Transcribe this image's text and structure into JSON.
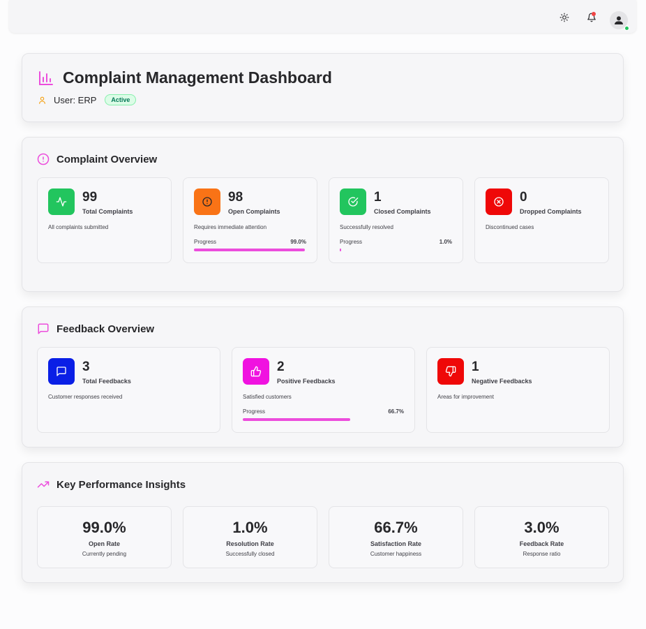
{
  "header": {
    "title": "Complaint Management Dashboard",
    "user_label": "User: ERP",
    "status_badge": "Active"
  },
  "topbar": {
    "icons": [
      "sun-icon",
      "bell-icon",
      "user-avatar-icon"
    ],
    "notification_dot": true,
    "online_status": true
  },
  "complaint_overview": {
    "title": "Complaint Overview",
    "cards": [
      {
        "value": "99",
        "label": "Total Complaints",
        "desc": "All complaints submitted",
        "icon": "activity-icon",
        "color": "#22c55e"
      },
      {
        "value": "98",
        "label": "Open Complaints",
        "desc": "Requires immediate attention",
        "icon": "alert-circle-icon",
        "color": "#f97316",
        "progress_label": "Progress",
        "progress_text": "99.0%",
        "progress": 0.99
      },
      {
        "value": "1",
        "label": "Closed Complaints",
        "desc": "Successfully resolved",
        "icon": "check-circle-icon",
        "color": "#22c55e",
        "progress_label": "Progress",
        "progress_text": "1.0%",
        "progress": 0.01
      },
      {
        "value": "0",
        "label": "Dropped Complaints",
        "desc": "Discontinued cases",
        "icon": "x-circle-icon",
        "color": "#ef0808"
      }
    ]
  },
  "feedback_overview": {
    "title": "Feedback Overview",
    "cards": [
      {
        "value": "3",
        "label": "Total Feedbacks",
        "desc": "Customer responses received",
        "icon": "message-square-icon",
        "color": "#0a1fe6"
      },
      {
        "value": "2",
        "label": "Positive Feedbacks",
        "desc": "Satisfied customers",
        "icon": "thumbs-up-icon",
        "color": "#f012e0",
        "progress_label": "Progress",
        "progress_text": "66.7%",
        "progress": 0.667
      },
      {
        "value": "1",
        "label": "Negative Feedbacks",
        "desc": "Areas for improvement",
        "icon": "thumbs-down-icon",
        "color": "#ef0808"
      }
    ]
  },
  "kpi": {
    "title": "Key Performance Insights",
    "cards": [
      {
        "value": "99.0%",
        "label": "Open Rate",
        "desc": "Currently pending"
      },
      {
        "value": "1.0%",
        "label": "Resolution Rate",
        "desc": "Successfully closed"
      },
      {
        "value": "66.7%",
        "label": "Satisfaction Rate",
        "desc": "Customer happiness"
      },
      {
        "value": "3.0%",
        "label": "Feedback Rate",
        "desc": "Response ratio"
      }
    ]
  },
  "colors": {
    "accent": "#ec4ddc",
    "user_icon": "#f59e0b",
    "badge_bg": "#dcfce7",
    "badge_text": "#047857"
  }
}
